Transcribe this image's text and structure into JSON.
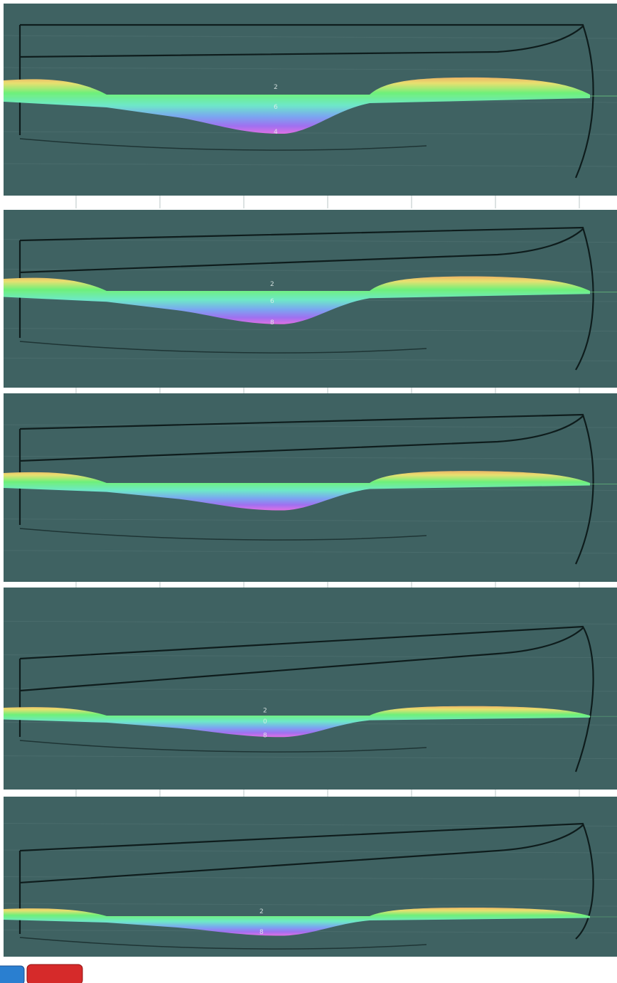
{
  "panels": [
    {
      "markers": [
        "2",
        "6",
        "4"
      ]
    },
    {
      "markers": [
        "2",
        "6",
        "8"
      ]
    },
    {
      "markers": []
    },
    {
      "markers": [
        "2",
        "0",
        "8"
      ]
    },
    {
      "markers": [
        "2",
        "8"
      ]
    }
  ]
}
